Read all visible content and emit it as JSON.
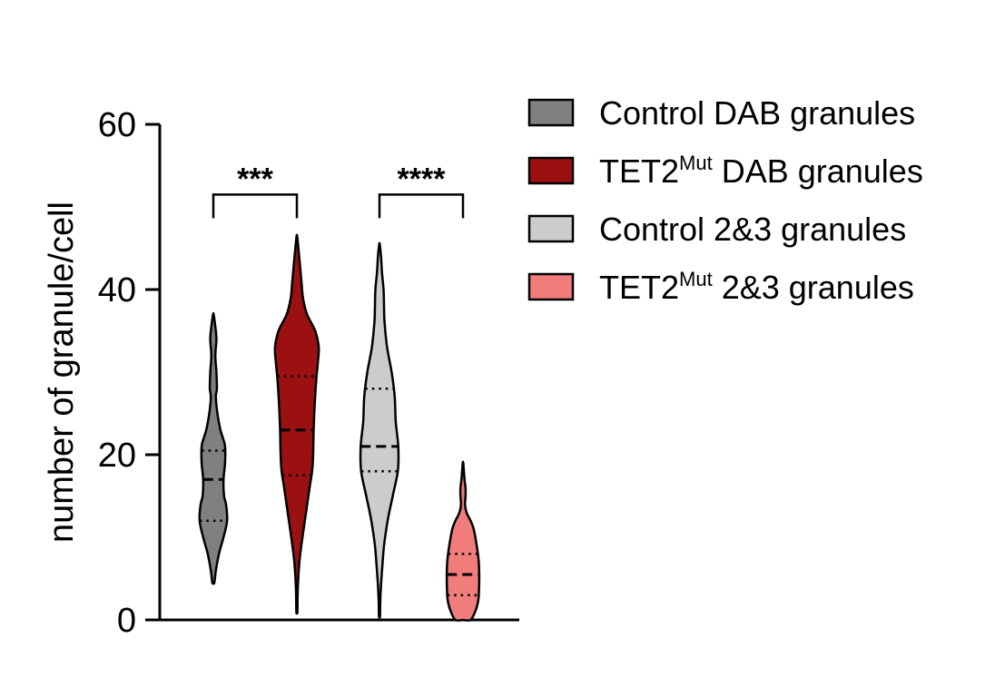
{
  "chart_data": {
    "type": "violin",
    "title": "",
    "xlabel": "",
    "ylabel": "number of granule/cell",
    "ylim": [
      0,
      60
    ],
    "yticks": [
      "0",
      "20",
      "40",
      "60"
    ],
    "legend_position": "right",
    "series": [
      {
        "name_main": "Control DAB granules",
        "name_sup": "",
        "name_suffix": "",
        "color": "#808080",
        "min": 4.5,
        "max": 37,
        "median": 17,
        "q1": 12,
        "q3": 20.5,
        "density": [
          [
            4.5,
            0.04
          ],
          [
            6,
            0.1
          ],
          [
            8,
            0.22
          ],
          [
            10,
            0.4
          ],
          [
            12,
            0.54
          ],
          [
            14,
            0.5
          ],
          [
            15,
            0.42
          ],
          [
            17,
            0.4
          ],
          [
            19,
            0.46
          ],
          [
            21,
            0.46
          ],
          [
            22,
            0.38
          ],
          [
            23,
            0.28
          ],
          [
            25,
            0.16
          ],
          [
            27,
            0.1
          ],
          [
            28,
            0.14
          ],
          [
            30,
            0.12
          ],
          [
            32,
            0.08
          ],
          [
            34,
            0.12
          ],
          [
            35.5,
            0.08
          ],
          [
            37,
            0.01
          ]
        ]
      },
      {
        "name_main": "TET2",
        "name_sup": "Mut",
        "name_suffix": " DAB granules",
        "color": "#9b1111",
        "min": 1,
        "max": 46.5,
        "median": 23,
        "q1": 17.5,
        "q3": 29.5,
        "density": [
          [
            1,
            0.02
          ],
          [
            4,
            0.04
          ],
          [
            7,
            0.1
          ],
          [
            10,
            0.22
          ],
          [
            13,
            0.36
          ],
          [
            16,
            0.5
          ],
          [
            18,
            0.6
          ],
          [
            20,
            0.64
          ],
          [
            23,
            0.66
          ],
          [
            26,
            0.7
          ],
          [
            29,
            0.76
          ],
          [
            31,
            0.82
          ],
          [
            33,
            0.86
          ],
          [
            35,
            0.72
          ],
          [
            37,
            0.4
          ],
          [
            39,
            0.24
          ],
          [
            41,
            0.18
          ],
          [
            43,
            0.12
          ],
          [
            45,
            0.06
          ],
          [
            46.5,
            0.01
          ]
        ]
      },
      {
        "name_main": "Control 2&3 granules",
        "name_sup": "",
        "name_suffix": "",
        "color": "#cccccc",
        "min": 0.5,
        "max": 45.5,
        "median": 21,
        "q1": 18,
        "q3": 28,
        "density": [
          [
            0.5,
            0.02
          ],
          [
            3,
            0.04
          ],
          [
            6,
            0.1
          ],
          [
            9,
            0.18
          ],
          [
            12,
            0.32
          ],
          [
            15,
            0.52
          ],
          [
            18,
            0.72
          ],
          [
            21,
            0.74
          ],
          [
            24,
            0.64
          ],
          [
            27,
            0.6
          ],
          [
            30,
            0.48
          ],
          [
            33,
            0.3
          ],
          [
            36,
            0.2
          ],
          [
            38,
            0.18
          ],
          [
            40,
            0.16
          ],
          [
            42,
            0.1
          ],
          [
            44,
            0.06
          ],
          [
            45.5,
            0.01
          ]
        ]
      },
      {
        "name_main": "TET2",
        "name_sup": "Mut",
        "name_suffix": " 2&3 granules",
        "color": "#f07c7c",
        "min": 0,
        "max": 19,
        "median": 5.5,
        "q1": 3,
        "q3": 8,
        "density": [
          [
            0,
            0.3
          ],
          [
            1,
            0.48
          ],
          [
            2,
            0.58
          ],
          [
            3,
            0.62
          ],
          [
            5,
            0.64
          ],
          [
            7,
            0.62
          ],
          [
            9,
            0.54
          ],
          [
            11,
            0.42
          ],
          [
            12,
            0.3
          ],
          [
            13,
            0.14
          ],
          [
            14,
            0.08
          ],
          [
            15,
            0.1
          ],
          [
            16,
            0.1
          ],
          [
            17,
            0.06
          ],
          [
            19,
            0.01
          ]
        ]
      }
    ],
    "significance": [
      {
        "label": "***",
        "from": 0,
        "to": 1,
        "y": 51.5
      },
      {
        "label": "****",
        "from": 2,
        "to": 3,
        "y": 51.5
      }
    ]
  }
}
